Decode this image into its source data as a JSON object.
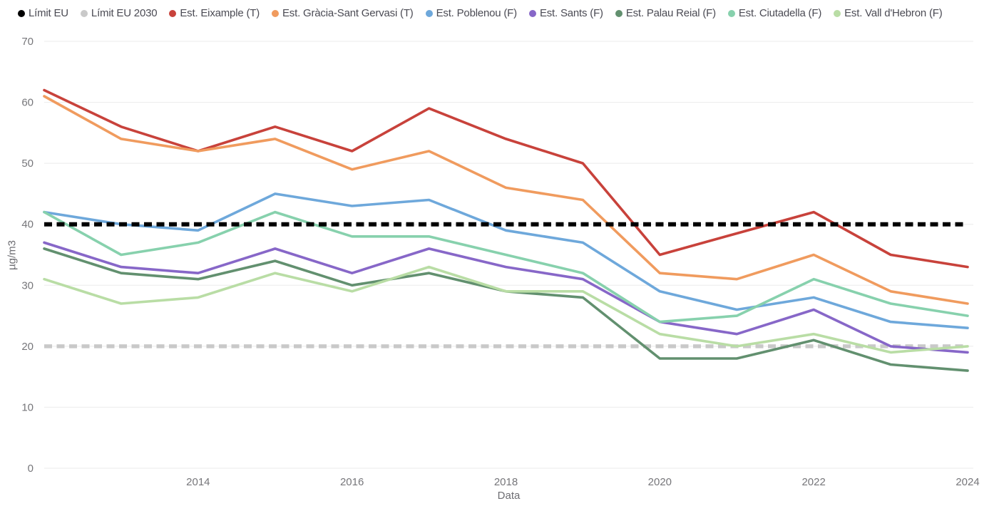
{
  "chart_data": {
    "type": "line",
    "title": "",
    "xlabel": "Data",
    "ylabel": "µg/m3",
    "ylim": [
      0,
      70
    ],
    "y_ticks": [
      0,
      10,
      20,
      30,
      40,
      50,
      60,
      70
    ],
    "x": [
      2012,
      2013,
      2014,
      2015,
      2016,
      2017,
      2018,
      2019,
      2020,
      2021,
      2022,
      2023,
      2024
    ],
    "x_ticks": [
      2014,
      2016,
      2018,
      2020,
      2022,
      2024
    ],
    "grid": "horizontal-only",
    "legend_position": "top",
    "limits": [
      {
        "name": "Límit EU",
        "value": 40,
        "color": "#000000",
        "style": "dashed"
      },
      {
        "name": "Límit EU 2030",
        "value": 20,
        "color": "#c9c9c9",
        "style": "dashed"
      }
    ],
    "series": [
      {
        "name": "Est. Eixample (T)",
        "color": "#c8423b",
        "values": [
          62,
          56,
          52,
          56,
          52,
          59,
          54,
          50,
          35,
          38.5,
          42,
          35,
          33
        ]
      },
      {
        "name": "Est. Gràcia-Sant Gervasi (T)",
        "color": "#f09b5e",
        "values": [
          61,
          54,
          52,
          54,
          49,
          52,
          46,
          44,
          32,
          31,
          35,
          29,
          27
        ]
      },
      {
        "name": "Est. Poblenou (F)",
        "color": "#6ea8db",
        "values": [
          42,
          40,
          39,
          45,
          43,
          44,
          39,
          37,
          29,
          26,
          28,
          24,
          23
        ]
      },
      {
        "name": "Est. Sants (F)",
        "color": "#8767c8",
        "values": [
          37,
          33,
          32,
          36,
          32,
          36,
          33,
          31,
          24,
          22,
          26,
          20,
          19
        ]
      },
      {
        "name": "Est. Palau Reial (F)",
        "color": "#62906f",
        "values": [
          36,
          32,
          31,
          34,
          30,
          32,
          29,
          28,
          18,
          18,
          21,
          17,
          16
        ]
      },
      {
        "name": "Est. Ciutadella (F)",
        "color": "#87d1ad",
        "values": [
          42,
          35,
          37,
          42,
          38,
          38,
          35,
          32,
          24,
          25,
          31,
          27,
          25
        ]
      },
      {
        "name": "Est. Vall d'Hebron (F)",
        "color": "#b9dda5",
        "values": [
          31,
          27,
          28,
          32,
          29,
          33,
          29,
          29,
          22,
          20,
          22,
          19,
          20
        ]
      }
    ]
  }
}
